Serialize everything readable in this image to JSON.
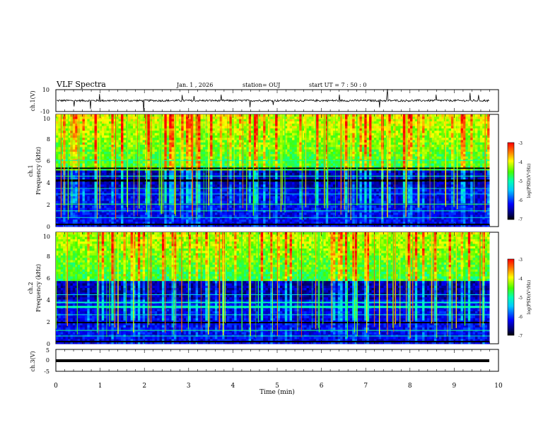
{
  "header": {
    "title": "VLF Spectra",
    "date": "Jan. 1 , 2026",
    "station": "station= OUJ",
    "start": "start UT =  7 : 50 : 0"
  },
  "chart_data": [
    {
      "type": "line",
      "panel": "ch1-waveform",
      "ylabel": "ch.1(V)",
      "ylim": [
        -10,
        10
      ],
      "yticks": [
        "10",
        "-10"
      ],
      "baseline": 0,
      "xlim": [
        0,
        10
      ]
    },
    {
      "type": "heatmap",
      "panel": "ch1-spectrogram",
      "ylabel_line1": "ch.1",
      "ylabel_line2": "Frequency (kHz)",
      "ylim": [
        0,
        10
      ],
      "yticks": [
        "0",
        "2",
        "4",
        "6",
        "8",
        "10"
      ],
      "xlim": [
        0,
        9.8
      ],
      "colorbar": {
        "label": "log(PSD)(V²/Hz)",
        "range": [
          -7,
          -3
        ],
        "ticks": [
          "-3",
          "-4",
          "-5",
          "-6",
          "-7"
        ]
      }
    },
    {
      "type": "heatmap",
      "panel": "ch2-spectrogram",
      "ylabel_line1": "ch.2",
      "ylabel_line2": "Frequency (kHz)",
      "ylim": [
        0,
        10
      ],
      "yticks": [
        "0",
        "2",
        "4",
        "6",
        "8",
        "10"
      ],
      "xlim": [
        0,
        9.8
      ],
      "colorbar": {
        "label": "log(PSD)(V²/Hz)",
        "range": [
          -7,
          -3
        ],
        "ticks": [
          "-3",
          "-4",
          "-5",
          "-6",
          "-7"
        ]
      }
    },
    {
      "type": "line",
      "panel": "ch3-waveform",
      "ylabel": "ch.3(V)",
      "ylim": [
        -5,
        5
      ],
      "yticks": [
        "5",
        "0",
        "-5"
      ],
      "baseline": -0.4,
      "xlim": [
        0,
        9.8
      ]
    }
  ],
  "xaxis": {
    "label": "Time (min)",
    "range": [
      0,
      10
    ],
    "ticks": [
      "0",
      "1",
      "2",
      "3",
      "4",
      "5",
      "6",
      "7",
      "8",
      "9",
      "10"
    ]
  }
}
